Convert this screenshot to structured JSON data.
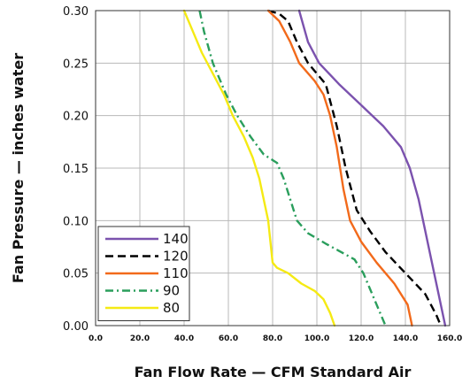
{
  "chart_data": {
    "type": "line",
    "xlabel": "Fan Flow Rate — CFM Standard Air",
    "ylabel": "Fan Pressure — inches water",
    "xlim": [
      0,
      160
    ],
    "ylim": [
      0,
      0.3
    ],
    "x_ticks": [
      "0.0",
      "20.0",
      "40.0",
      "60.0",
      "80.0",
      "100.0",
      "120.0",
      "140.0",
      "160.0"
    ],
    "y_ticks": [
      "0.00",
      "0.05",
      "0.10",
      "0.15",
      "0.20",
      "0.25",
      "0.30"
    ],
    "grid": true,
    "legend_position": "bottom-left",
    "series": [
      {
        "name": "140",
        "color": "#7b52ae",
        "dash": "solid",
        "points": [
          [
            92,
            0.3
          ],
          [
            96,
            0.27
          ],
          [
            101,
            0.25
          ],
          [
            110,
            0.23
          ],
          [
            120,
            0.21
          ],
          [
            130,
            0.19
          ],
          [
            138,
            0.17
          ],
          [
            142,
            0.15
          ],
          [
            146,
            0.12
          ],
          [
            150,
            0.08
          ],
          [
            153,
            0.05
          ],
          [
            156,
            0.02
          ],
          [
            158,
            0.0
          ]
        ]
      },
      {
        "name": "120",
        "color": "#000000",
        "dash": "dash",
        "points": [
          [
            78,
            0.3
          ],
          [
            83,
            0.297
          ],
          [
            87,
            0.29
          ],
          [
            91,
            0.27
          ],
          [
            96,
            0.25
          ],
          [
            104,
            0.23
          ],
          [
            109,
            0.19
          ],
          [
            113,
            0.15
          ],
          [
            118,
            0.11
          ],
          [
            124,
            0.09
          ],
          [
            131,
            0.07
          ],
          [
            140,
            0.05
          ],
          [
            149,
            0.03
          ],
          [
            154,
            0.01
          ],
          [
            156,
            0.0
          ]
        ]
      },
      {
        "name": "110",
        "color": "#f26a1b",
        "dash": "solid",
        "points": [
          [
            78,
            0.3
          ],
          [
            83,
            0.29
          ],
          [
            88,
            0.27
          ],
          [
            92,
            0.25
          ],
          [
            99,
            0.233
          ],
          [
            103,
            0.22
          ],
          [
            106,
            0.2
          ],
          [
            109,
            0.17
          ],
          [
            112,
            0.13
          ],
          [
            115,
            0.1
          ],
          [
            120,
            0.08
          ],
          [
            127,
            0.06
          ],
          [
            135,
            0.04
          ],
          [
            141,
            0.02
          ],
          [
            143,
            0.0
          ]
        ]
      },
      {
        "name": "90",
        "color": "#2a9e5c",
        "dash": "dashdot",
        "points": [
          [
            47,
            0.3
          ],
          [
            49,
            0.28
          ],
          [
            53,
            0.25
          ],
          [
            59,
            0.22
          ],
          [
            64,
            0.2
          ],
          [
            70,
            0.18
          ],
          [
            76,
            0.163
          ],
          [
            82,
            0.155
          ],
          [
            85,
            0.14
          ],
          [
            88,
            0.12
          ],
          [
            91,
            0.1
          ],
          [
            96,
            0.088
          ],
          [
            104,
            0.078
          ],
          [
            111,
            0.07
          ],
          [
            117,
            0.063
          ],
          [
            121,
            0.05
          ],
          [
            124,
            0.035
          ],
          [
            127,
            0.02
          ],
          [
            131,
            0.0
          ]
        ]
      },
      {
        "name": "80",
        "color": "#f5ea14",
        "dash": "solid",
        "points": [
          [
            40,
            0.3
          ],
          [
            44,
            0.28
          ],
          [
            48,
            0.26
          ],
          [
            53,
            0.24
          ],
          [
            58,
            0.22
          ],
          [
            62,
            0.2
          ],
          [
            67,
            0.18
          ],
          [
            71,
            0.16
          ],
          [
            74,
            0.14
          ],
          [
            76,
            0.12
          ],
          [
            78,
            0.1
          ],
          [
            79,
            0.08
          ],
          [
            80,
            0.06
          ],
          [
            82,
            0.055
          ],
          [
            87,
            0.05
          ],
          [
            93,
            0.04
          ],
          [
            99,
            0.033
          ],
          [
            103,
            0.025
          ],
          [
            106,
            0.012
          ],
          [
            108,
            0.0
          ]
        ]
      }
    ]
  }
}
